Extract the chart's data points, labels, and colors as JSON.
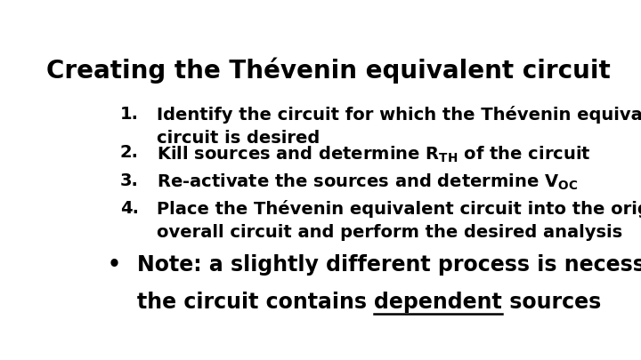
{
  "title": "Creating the Thévenin equivalent circuit",
  "background_color": "#ffffff",
  "text_color": "#000000",
  "title_fontsize": 20,
  "body_fontsize": 14,
  "note_fontsize": 17,
  "item1_line1": "Identify the circuit for which the Thévenin equivalent",
  "item1_line2": "circuit is desired",
  "item2_pre": "Kill sources and determine R",
  "item2_sub": "TH",
  "item2_post": " of the circuit",
  "item3_pre": "Re-activate the sources and determine V",
  "item3_sub": "OC",
  "item4_line1": "Place the Thévenin equivalent circuit into the original",
  "item4_line2": "overall circuit and perform the desired analysis",
  "note_line1": "Note: a slightly different process is necessary if",
  "note_line2_pre": "the circuit contains ",
  "note_line2_under": "dependent",
  "note_line2_post": " sources",
  "bullet": "•",
  "indent_num": 0.08,
  "indent_text": 0.155
}
